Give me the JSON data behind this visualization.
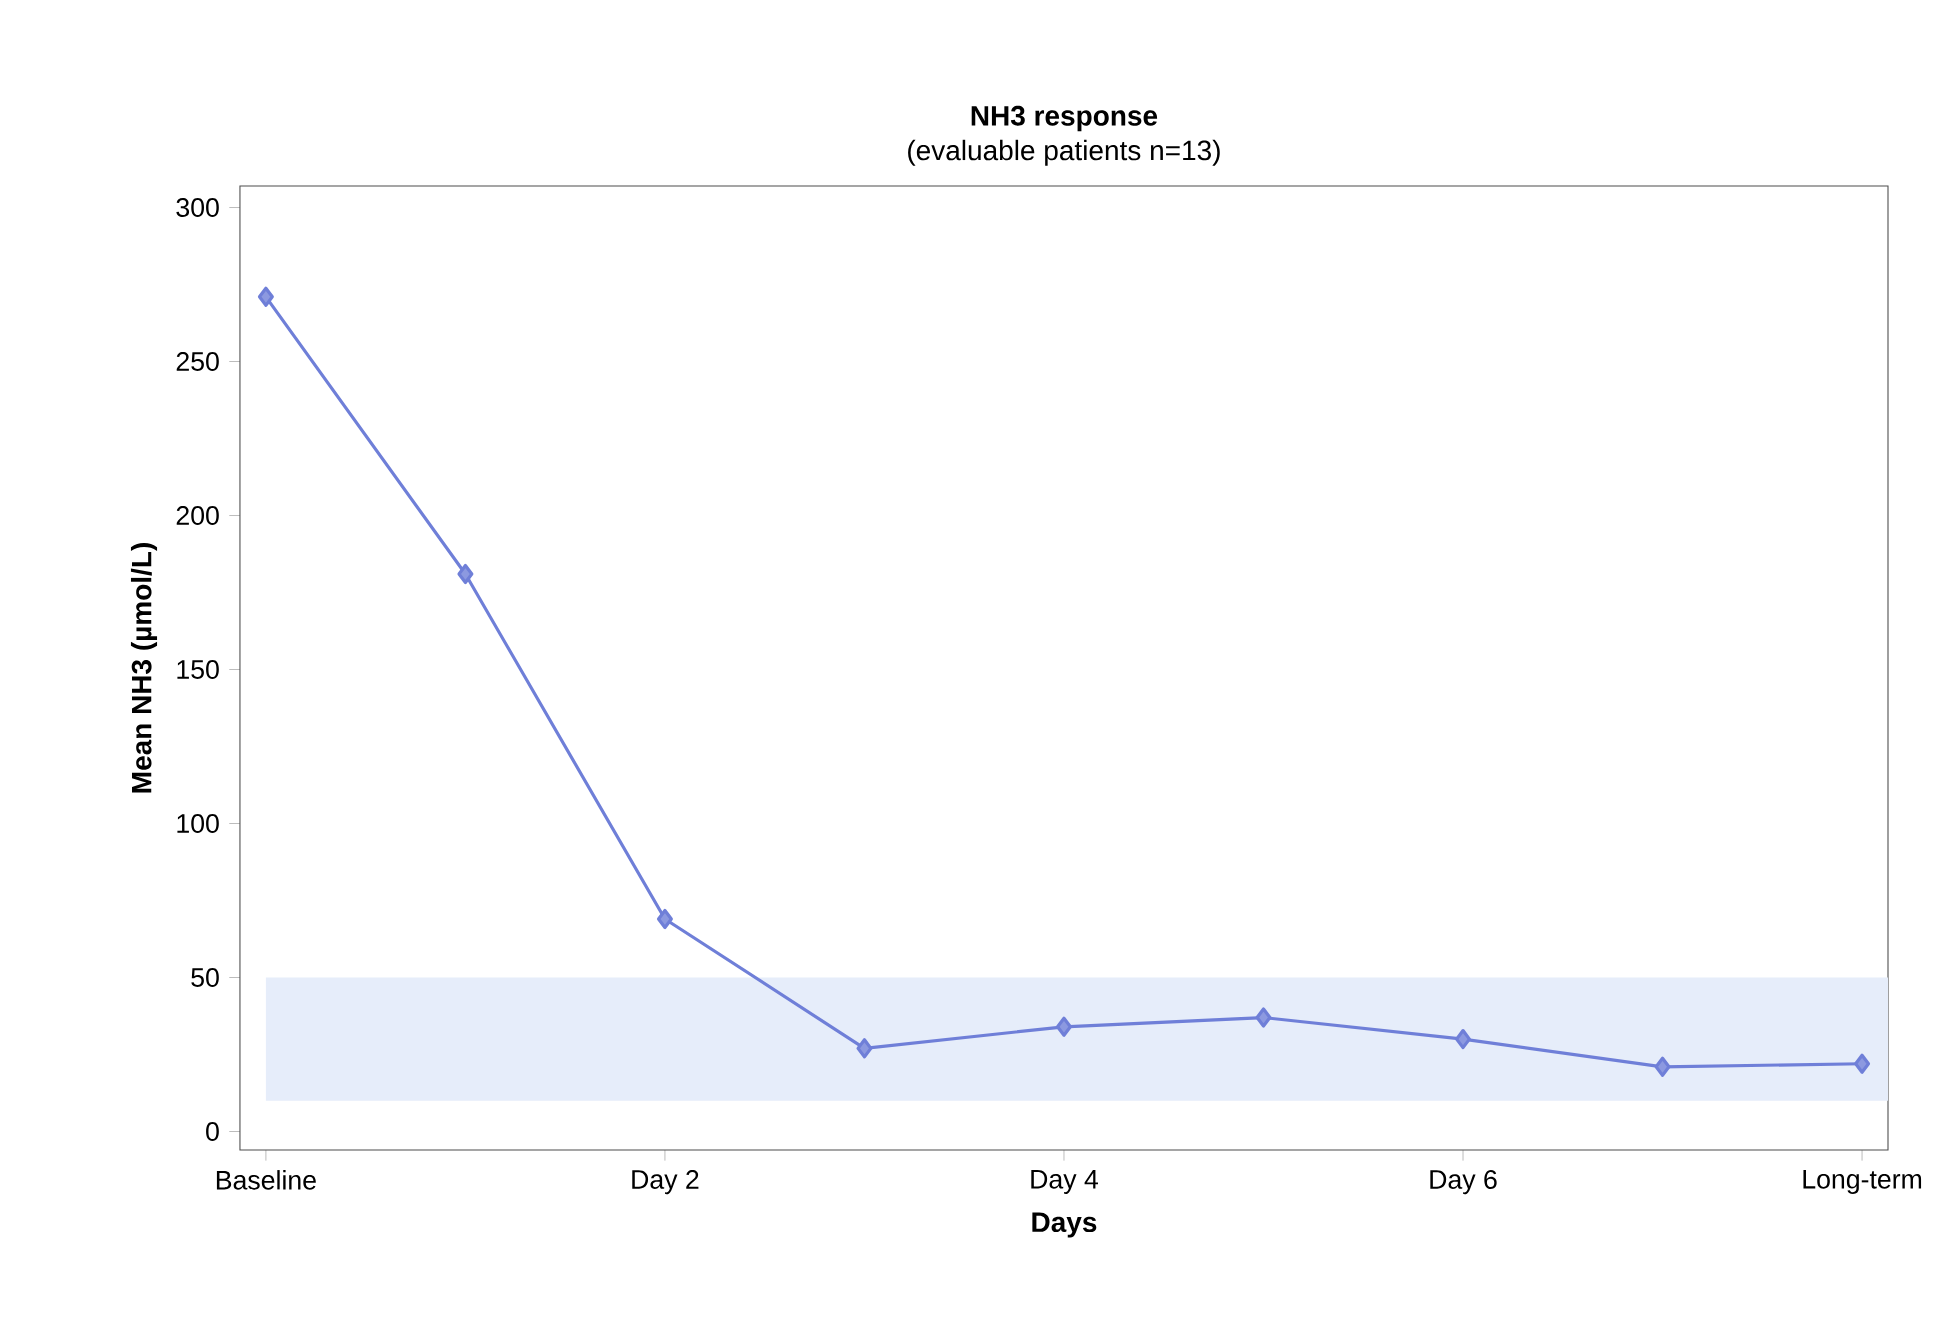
{
  "chart_data": {
    "type": "line",
    "title": "NH3 response",
    "subtitle": "(evaluable patients n=13)",
    "xlabel": "Days",
    "ylabel": "Mean NH3 (µmol/L)",
    "categories": [
      "Baseline",
      null,
      "Day 2",
      null,
      "Day 4",
      null,
      "Day 6",
      null,
      "Long-term"
    ],
    "series": [
      {
        "color": "#6f7fd8",
        "values": [
          271,
          181,
          69,
          27,
          34,
          37,
          30,
          21,
          22
        ]
      }
    ],
    "ylim": [
      -6,
      307
    ],
    "yticks": [
      0,
      50,
      100,
      150,
      200,
      250,
      300
    ],
    "bands": [
      {
        "axis": "y",
        "from": 10,
        "to": 50,
        "color": "#e6edfa"
      }
    ],
    "marker": "diamond",
    "line_style": "solid",
    "grid": false
  }
}
